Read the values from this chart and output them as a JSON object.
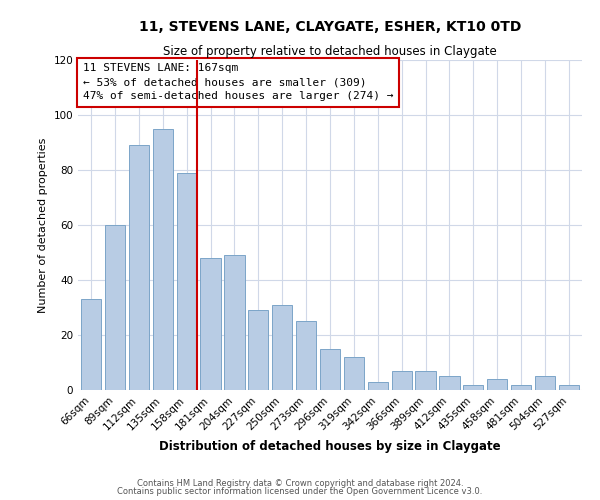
{
  "title": "11, STEVENS LANE, CLAYGATE, ESHER, KT10 0TD",
  "subtitle": "Size of property relative to detached houses in Claygate",
  "xlabel": "Distribution of detached houses by size in Claygate",
  "ylabel": "Number of detached properties",
  "categories": [
    "66sqm",
    "89sqm",
    "112sqm",
    "135sqm",
    "158sqm",
    "181sqm",
    "204sqm",
    "227sqm",
    "250sqm",
    "273sqm",
    "296sqm",
    "319sqm",
    "342sqm",
    "366sqm",
    "389sqm",
    "412sqm",
    "435sqm",
    "458sqm",
    "481sqm",
    "504sqm",
    "527sqm"
  ],
  "values": [
    33,
    60,
    89,
    95,
    79,
    48,
    49,
    29,
    31,
    25,
    15,
    12,
    3,
    7,
    7,
    5,
    2,
    4,
    2,
    5,
    2
  ],
  "bar_color": "#b8cce4",
  "bar_edge_color": "#7ca5c8",
  "highlight_index": 4,
  "highlight_color": "#cc0000",
  "ylim": [
    0,
    120
  ],
  "yticks": [
    0,
    20,
    40,
    60,
    80,
    100,
    120
  ],
  "annotation_title": "11 STEVENS LANE: 167sqm",
  "annotation_line1": "← 53% of detached houses are smaller (309)",
  "annotation_line2": "47% of semi-detached houses are larger (274) →",
  "annotation_box_color": "#ffffff",
  "annotation_box_edge": "#cc0000",
  "footer_line1": "Contains HM Land Registry data © Crown copyright and database right 2024.",
  "footer_line2": "Contains public sector information licensed under the Open Government Licence v3.0.",
  "background_color": "#ffffff",
  "grid_color": "#d0d8e8"
}
